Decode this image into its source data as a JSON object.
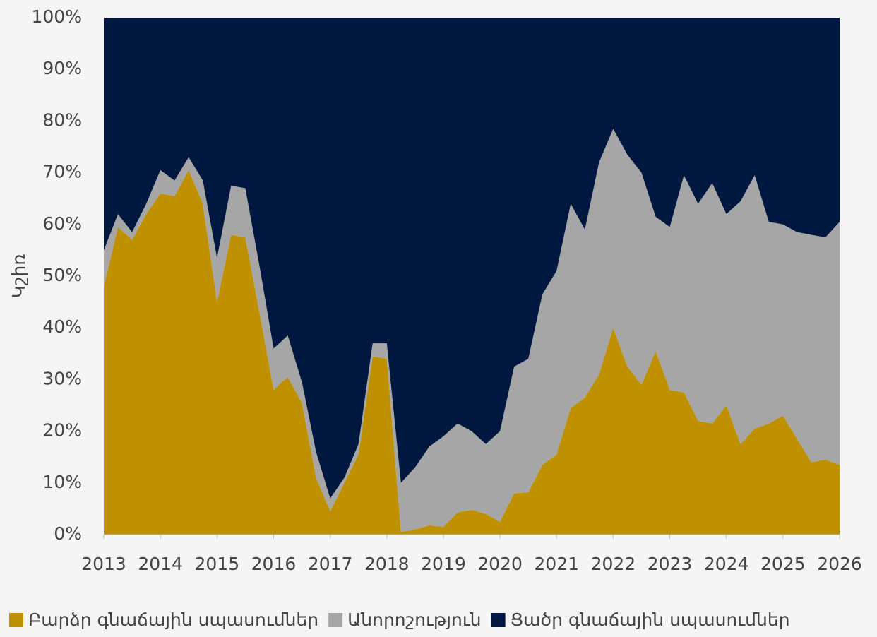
{
  "chart_data": {
    "type": "stacked_area",
    "y_label": "Կշիռ",
    "x": [
      2013,
      2013.25,
      2013.5,
      2013.75,
      2014,
      2014.25,
      2014.5,
      2014.75,
      2015,
      2015.25,
      2015.5,
      2015.75,
      2016,
      2016.25,
      2016.5,
      2016.75,
      2017,
      2017.25,
      2017.5,
      2017.75,
      2018,
      2018.25,
      2018.5,
      2018.75,
      2019,
      2019.25,
      2019.5,
      2019.75,
      2020,
      2020.25,
      2020.5,
      2020.75,
      2021,
      2021.25,
      2021.5,
      2021.75,
      2022,
      2022.25,
      2022.5,
      2022.75,
      2023,
      2023.25,
      2023.5,
      2023.75,
      2024,
      2024.25,
      2024.5,
      2024.75,
      2025,
      2025.25,
      2025.5,
      2025.75,
      2026
    ],
    "series": [
      {
        "name": "Բարձր գնաճային սպասումներ",
        "color": "#bf9000",
        "values": [
          48,
          59.5,
          57,
          62,
          66,
          65.5,
          70.5,
          64,
          45,
          58,
          57.5,
          43,
          28,
          30.5,
          25.5,
          11,
          4.5,
          10,
          15.5,
          34.5,
          34,
          0.5,
          1,
          1.8,
          1.5,
          4.3,
          4.8,
          4,
          2.5,
          8,
          8.2,
          13.5,
          15.5,
          24.5,
          26.5,
          31,
          40,
          32.5,
          29,
          35.5,
          28,
          27.5,
          22,
          21.5,
          25,
          17.5,
          20.5,
          21.5,
          23,
          18.5,
          14,
          14.5,
          13.5
        ]
      },
      {
        "name": "Անորոշություն",
        "color": "#a6a6a6",
        "values": [
          7,
          2.5,
          1.5,
          2,
          4.5,
          3,
          2.5,
          4.5,
          8.5,
          9.5,
          9.5,
          9,
          8,
          8,
          4,
          5,
          2.5,
          1,
          2,
          2.5,
          3,
          9.5,
          12,
          15.2,
          17.5,
          17.2,
          15.2,
          13.5,
          17.5,
          24.5,
          25.8,
          33,
          35.5,
          39.5,
          32.5,
          41,
          38.5,
          41,
          41,
          26,
          31.5,
          42,
          42,
          46.5,
          37,
          47,
          49,
          39,
          37,
          40,
          44,
          43,
          47
        ]
      },
      {
        "name": "Ցածր գնաճային սպասումներ",
        "color": "#00183f",
        "values": [
          45,
          38,
          41.5,
          36,
          29.5,
          31.5,
          27,
          31.5,
          46.5,
          32.5,
          33,
          48,
          64,
          61.5,
          70.5,
          84,
          93,
          89,
          82.5,
          63,
          63,
          90,
          87,
          83,
          81,
          78.5,
          80,
          82.5,
          80,
          67.5,
          66,
          53.5,
          49,
          36,
          41,
          28,
          21.5,
          26.5,
          30,
          38.5,
          40.5,
          30.5,
          36,
          32,
          38,
          35.5,
          30.5,
          39.5,
          40,
          41.5,
          42,
          42.5,
          39.5
        ]
      }
    ],
    "xlim": [
      2013,
      2026
    ],
    "xticks": [
      2013,
      2014,
      2015,
      2016,
      2017,
      2018,
      2019,
      2020,
      2021,
      2022,
      2023,
      2024,
      2025,
      2026
    ],
    "ylim": [
      0,
      100
    ],
    "yticks": [
      {
        "value": 0,
        "label": "0%"
      },
      {
        "value": 10,
        "label": "10%"
      },
      {
        "value": 20,
        "label": "20%"
      },
      {
        "value": 30,
        "label": "30%"
      },
      {
        "value": 40,
        "label": "40%"
      },
      {
        "value": 50,
        "label": "50%"
      },
      {
        "value": 60,
        "label": "60%"
      },
      {
        "value": 70,
        "label": "70%"
      },
      {
        "value": 80,
        "label": "80%"
      },
      {
        "value": 90,
        "label": "90%"
      },
      {
        "value": 100,
        "label": "100%"
      }
    ],
    "legend": "bottom"
  }
}
